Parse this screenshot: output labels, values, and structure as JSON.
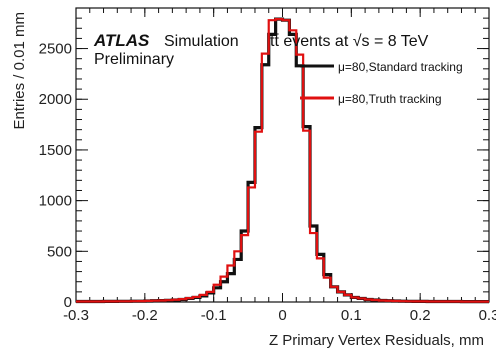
{
  "chart_data": {
    "type": "line",
    "xlabel": "Z Primary Vertex Residuals, mm",
    "ylabel": "Entries / 0.01 mm",
    "xlim": [
      -0.3,
      0.3
    ],
    "ylim": [
      0,
      2900
    ],
    "x_ticks": [
      "-0.3",
      "-0.2",
      "-0.1",
      "0",
      "0.1",
      "0.2",
      "0.3"
    ],
    "y_ticks": [
      "0",
      "500",
      "1000",
      "1500",
      "2000",
      "2500"
    ],
    "annotations": {
      "experiment": "ATLAS",
      "status": "Simulation",
      "status2": "Preliminary",
      "process": "tt̄ events at √s = 8 TeV"
    },
    "legend_position": "top-right",
    "bin_width": 0.01,
    "series": [
      {
        "name": "μ=80,Standard tracking",
        "color": "#111111",
        "bin_centers": [
          -0.295,
          -0.285,
          -0.275,
          -0.265,
          -0.255,
          -0.245,
          -0.235,
          -0.225,
          -0.215,
          -0.205,
          -0.195,
          -0.185,
          -0.175,
          -0.165,
          -0.155,
          -0.145,
          -0.135,
          -0.125,
          -0.115,
          -0.105,
          -0.095,
          -0.085,
          -0.075,
          -0.065,
          -0.055,
          -0.045,
          -0.035,
          -0.025,
          -0.015,
          -0.005,
          0.005,
          0.015,
          0.025,
          0.035,
          0.045,
          0.055,
          0.065,
          0.075,
          0.085,
          0.095,
          0.105,
          0.115,
          0.125,
          0.135,
          0.145,
          0.155,
          0.165,
          0.175,
          0.185,
          0.195,
          0.205,
          0.215,
          0.225,
          0.235,
          0.245,
          0.255,
          0.265,
          0.275,
          0.285,
          0.295
        ],
        "values": [
          5,
          5,
          5,
          5,
          6,
          6,
          7,
          7,
          8,
          8,
          10,
          12,
          14,
          16,
          20,
          25,
          35,
          45,
          60,
          90,
          140,
          200,
          280,
          420,
          700,
          1180,
          1720,
          2340,
          2640,
          2790,
          2780,
          2640,
          2330,
          1730,
          750,
          470,
          270,
          150,
          100,
          70,
          45,
          35,
          25,
          20,
          15,
          12,
          10,
          8,
          7,
          6,
          6,
          5,
          5,
          5,
          5,
          5,
          4,
          4,
          4,
          4
        ]
      },
      {
        "name": "μ=80,Truth tracking",
        "color": "#e01010",
        "bin_centers": [
          -0.295,
          -0.285,
          -0.275,
          -0.265,
          -0.255,
          -0.245,
          -0.235,
          -0.225,
          -0.215,
          -0.205,
          -0.195,
          -0.185,
          -0.175,
          -0.165,
          -0.155,
          -0.145,
          -0.135,
          -0.125,
          -0.115,
          -0.105,
          -0.095,
          -0.085,
          -0.075,
          -0.065,
          -0.055,
          -0.045,
          -0.035,
          -0.025,
          -0.015,
          -0.005,
          0.005,
          0.015,
          0.025,
          0.035,
          0.045,
          0.055,
          0.065,
          0.075,
          0.085,
          0.095,
          0.105,
          0.115,
          0.125,
          0.135,
          0.145,
          0.155,
          0.165,
          0.175,
          0.185,
          0.195,
          0.205,
          0.215,
          0.225,
          0.235,
          0.245,
          0.255,
          0.265,
          0.275,
          0.285,
          0.295
        ],
        "values": [
          5,
          5,
          5,
          5,
          6,
          6,
          7,
          7,
          8,
          9,
          11,
          13,
          15,
          18,
          22,
          28,
          38,
          50,
          70,
          100,
          170,
          250,
          360,
          500,
          660,
          1130,
          1680,
          2450,
          2780,
          2790,
          2780,
          2680,
          2440,
          1690,
          680,
          430,
          240,
          150,
          100,
          70,
          45,
          35,
          25,
          20,
          15,
          12,
          10,
          8,
          7,
          6,
          6,
          5,
          5,
          5,
          5,
          5,
          4,
          4,
          4,
          4
        ]
      }
    ]
  }
}
